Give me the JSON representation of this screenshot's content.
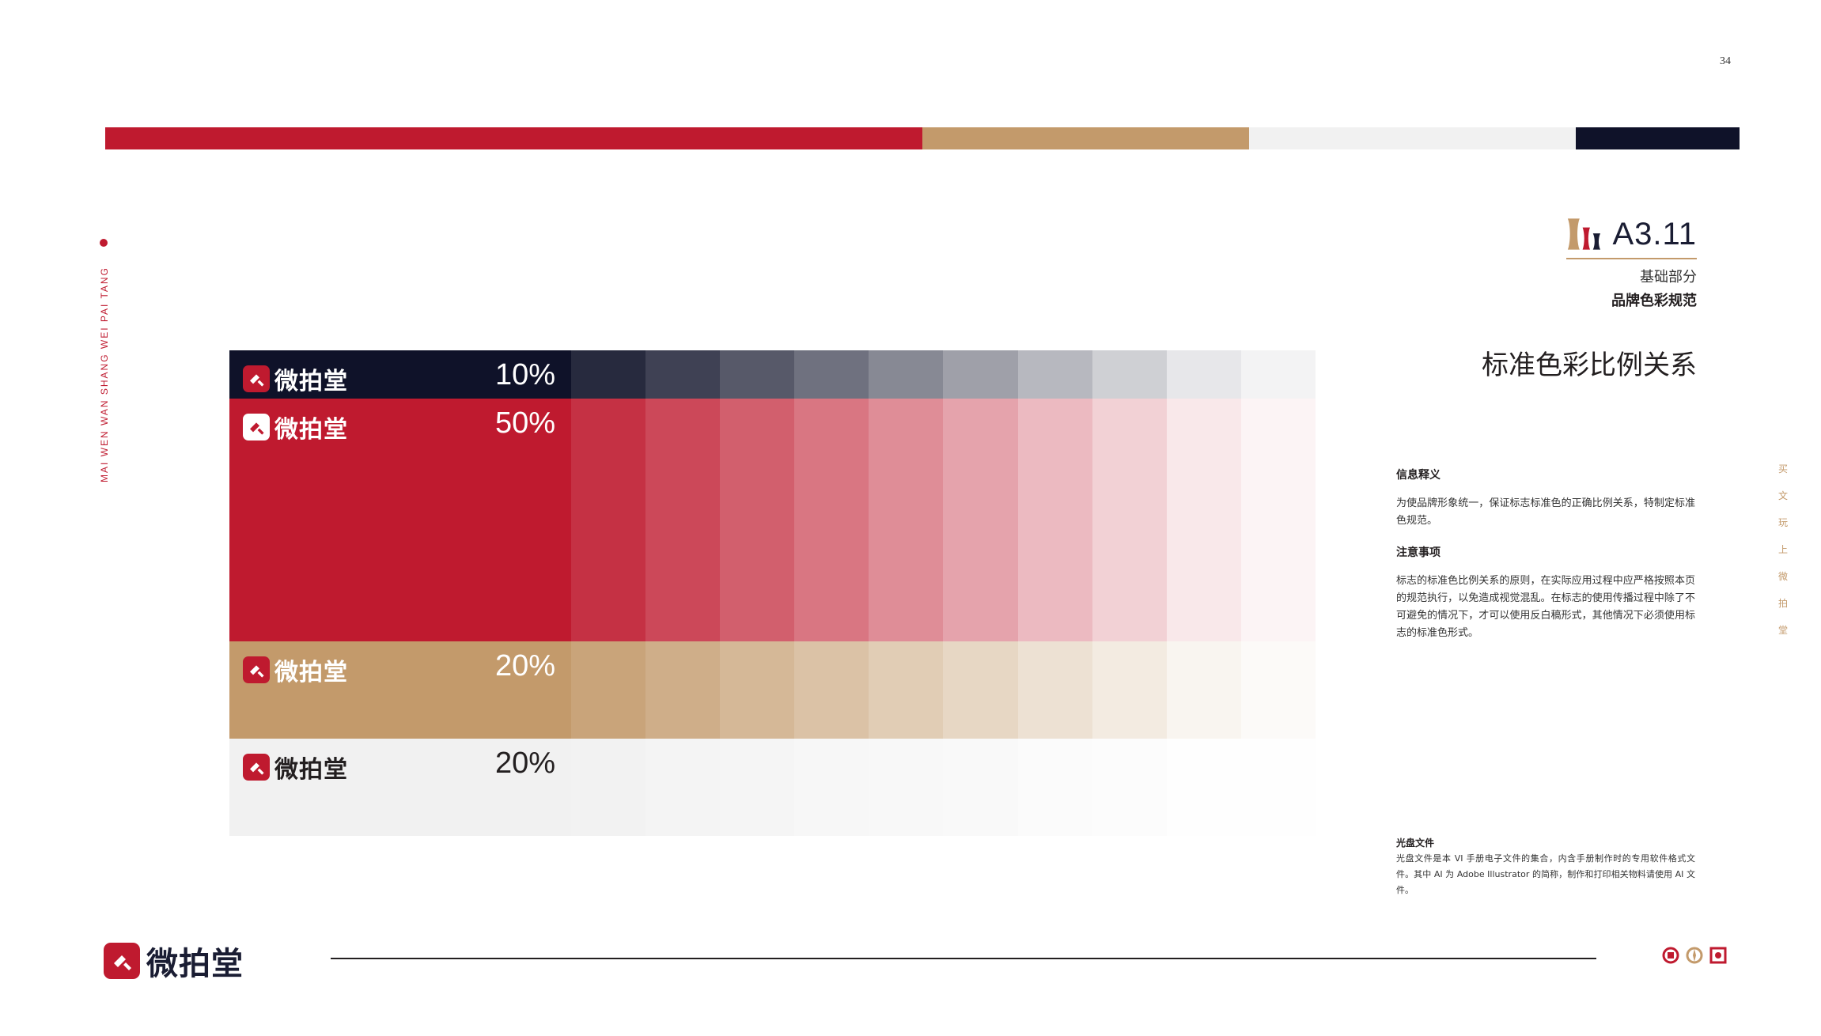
{
  "page_number": "34",
  "top_bar": [
    {
      "name": "red",
      "color": "#bf1a2f",
      "fraction": 0.5
    },
    {
      "name": "gold",
      "color": "#c39a6b",
      "fraction": 0.2
    },
    {
      "name": "light-gray",
      "color": "#f1f1f1",
      "fraction": 0.2
    },
    {
      "name": "navy",
      "color": "#0f1229",
      "fraction": 0.1
    }
  ],
  "side_text": "MAI WEN WAN SHANG WEI PAI TANG",
  "right_vertical": [
    "买",
    "文",
    "玩",
    "上",
    "微",
    "拍",
    "堂"
  ],
  "section": {
    "code": "A3.11",
    "part": "基础部分",
    "title": "品牌色彩规范"
  },
  "main_heading": "标准色彩比例关系",
  "info": {
    "h1": "信息释义",
    "p1": "为使品牌形象统一，保证标志标准色的正确比例关系，特制定标准色规范。",
    "h2": "注意事项",
    "p2": "标志的标准色比例关系的原则，在实际应用过程中应严格按照本页的规范执行，以免造成视觉混乱。在标志的使用传播过程中除了不可避免的情况下，才可以使用反白稿形式，其他情况下必须使用标志的标准色形式。"
  },
  "disk": {
    "title": "光盘文件",
    "text": "光盘文件是本 VI 手册电子文件的集合，内含手册制作时的专用软件格式文件。其中 AI 为 Adobe Illustrator 的简称，制作和打印相关物料请使用 AI 文件。"
  },
  "brand_name": "微拍堂",
  "color_rows": [
    {
      "name": "navy",
      "percent": "10%",
      "color": "#0f1229",
      "text_color": "#ffffff",
      "mark_bg": "#bf1a2f",
      "ratio": 0.1
    },
    {
      "name": "red",
      "percent": "50%",
      "color": "#bf1a2f",
      "text_color": "#ffffff",
      "mark_bg": "#ffffff",
      "ratio": 0.5
    },
    {
      "name": "gold",
      "percent": "20%",
      "color": "#c39a6b",
      "text_color": "#ffffff",
      "mark_bg": "#bf1a2f",
      "ratio": 0.2
    },
    {
      "name": "light-gray",
      "percent": "20%",
      "color": "#f1f1f1",
      "text_color": "#231f20",
      "mark_bg": "#bf1a2f",
      "ratio": 0.2
    }
  ],
  "tint_levels": [
    0.9,
    0.8,
    0.7,
    0.6,
    0.5,
    0.4,
    0.3,
    0.2,
    0.1,
    0.05
  ],
  "colors": {
    "accent_red": "#bf1a2f",
    "gold": "#c39a6b",
    "navy": "#1a1d33"
  }
}
